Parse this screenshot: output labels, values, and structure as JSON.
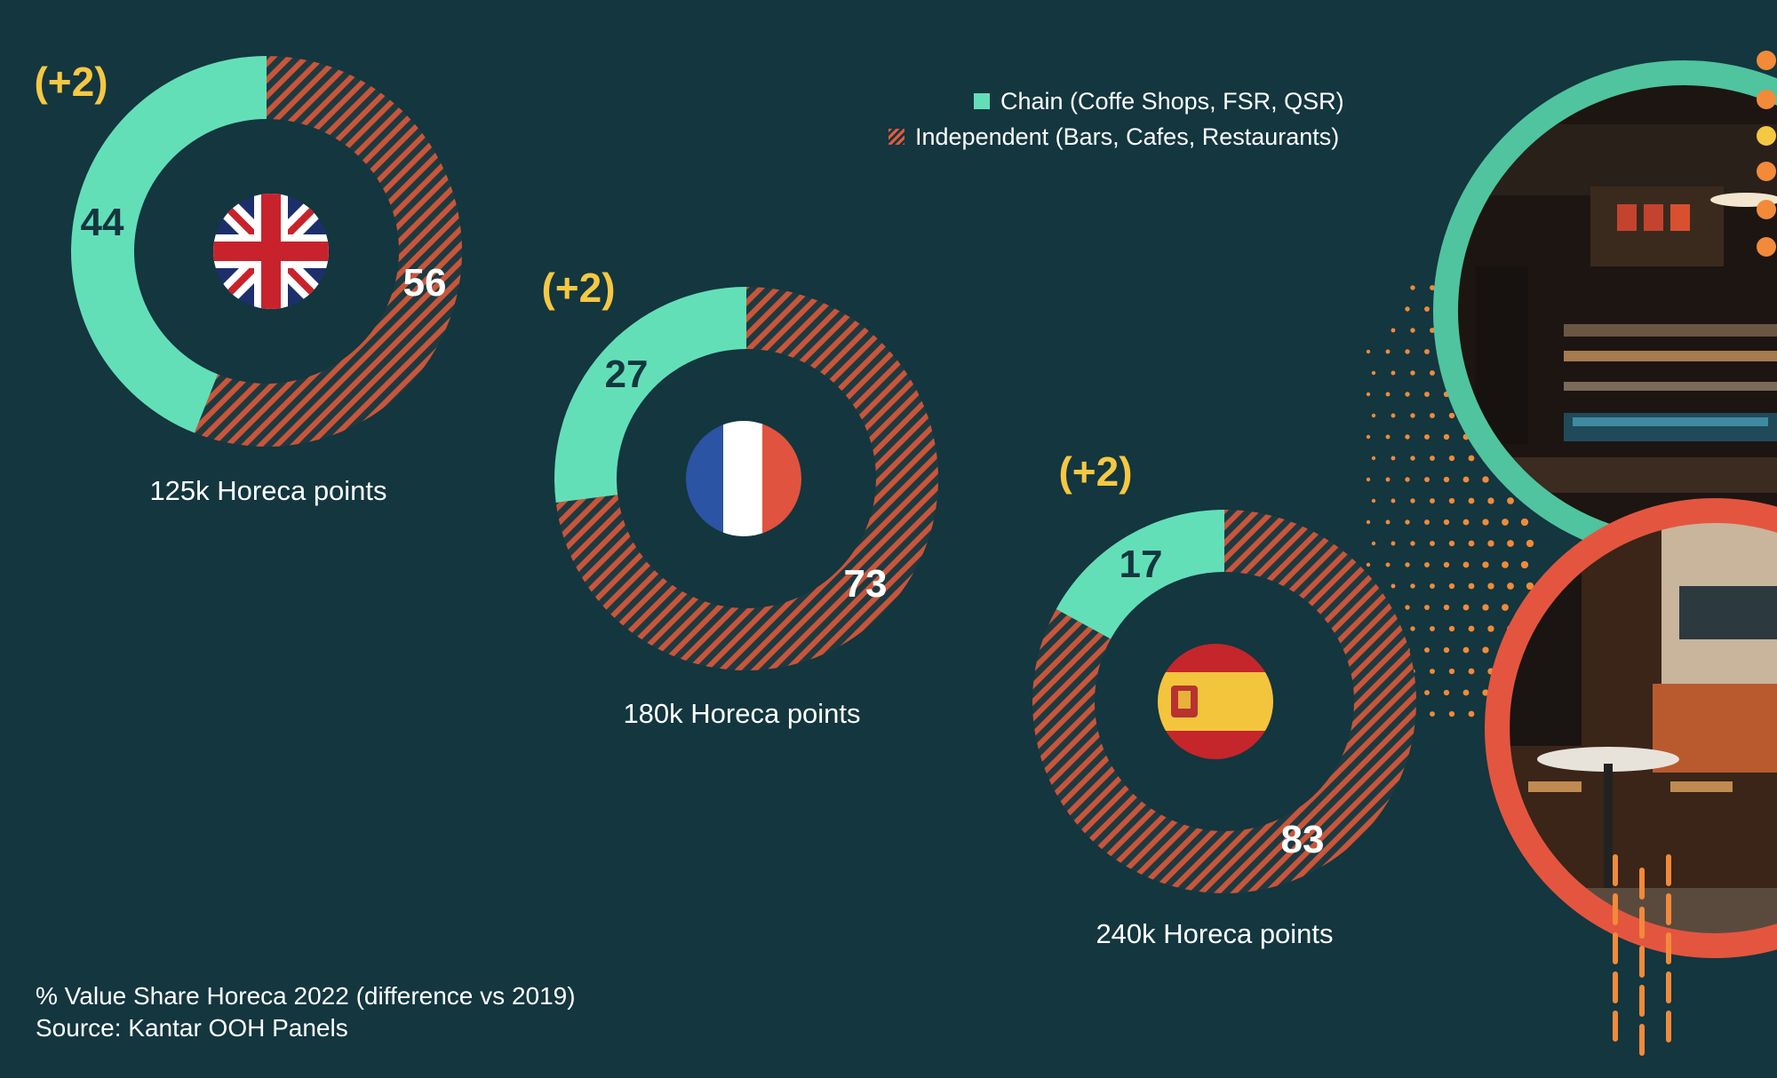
{
  "chart_data": [
    {
      "type": "pie",
      "segments": [
        {
          "name": "Chain (Coffe Shops, FSR, QSR)",
          "value": 44
        },
        {
          "name": "Independent (Bars, Cafes, Restaurants)",
          "value": 56
        }
      ],
      "labels": {
        "chain": "44",
        "independent": "56"
      },
      "change": "(+2)",
      "caption": "125k Horeca points",
      "flag": "uk-flag"
    },
    {
      "type": "pie",
      "segments": [
        {
          "name": "Chain (Coffe Shops, FSR, QSR)",
          "value": 27
        },
        {
          "name": "Independent (Bars, Cafes, Restaurants)",
          "value": 73
        }
      ],
      "labels": {
        "chain": "27",
        "independent": "73"
      },
      "change": "(+2)",
      "caption": "180k Horeca points",
      "flag": "france-flag"
    },
    {
      "type": "pie",
      "segments": [
        {
          "name": "Chain (Coffe Shops, FSR, QSR)",
          "value": 17
        },
        {
          "name": "Independent (Bars, Cafes, Restaurants)",
          "value": 83
        }
      ],
      "labels": {
        "chain": "17",
        "independent": "83"
      },
      "change": "(+2)",
      "caption": "240k Horeca points",
      "flag": "spain-flag"
    }
  ],
  "legend": {
    "chain": "Chain (Coffe Shops, FSR, QSR)",
    "independent": "Independent (Bars, Cafes, Restaurants)"
  },
  "footer": {
    "note": "% Value Share Horeca 2022 (difference vs 2019)",
    "source": "Source: Kantar OOH Panels"
  },
  "colors": {
    "background": "#13363f",
    "chain": "#63dfb8",
    "independent": "#e55a3c",
    "change": "#f5c842",
    "teal_ring": "#4fc49f",
    "red_ring": "#e4553f"
  }
}
